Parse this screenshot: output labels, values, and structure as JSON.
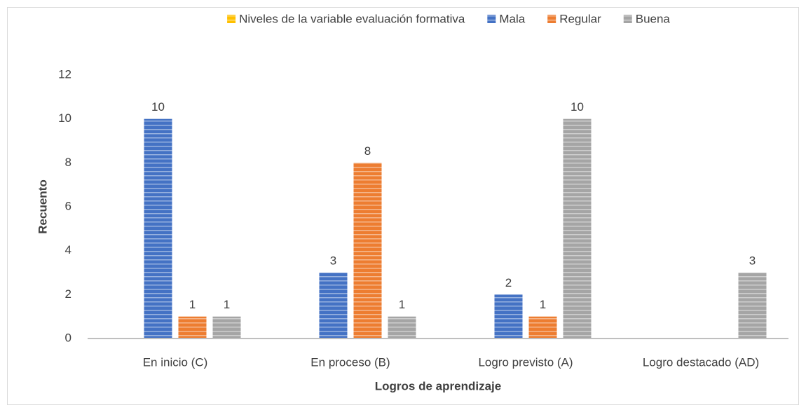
{
  "chart_data": {
    "type": "bar",
    "categories": [
      "En inicio (C)",
      "En proceso (B)",
      "Logro previsto (A)",
      "Logro destacado (AD)"
    ],
    "series": [
      {
        "name": "Niveles de la variable evaluación formativa",
        "color": "#ffc000",
        "values": [
          null,
          null,
          null,
          null
        ]
      },
      {
        "name": "Mala",
        "color": "#4472c4",
        "values": [
          10,
          3,
          2,
          null
        ]
      },
      {
        "name": "Regular",
        "color": "#ed7d31",
        "values": [
          1,
          8,
          1,
          null
        ]
      },
      {
        "name": "Buena",
        "color": "#a5a5a5",
        "values": [
          1,
          1,
          10,
          3
        ]
      }
    ],
    "xlabel": "Logros de aprendizaje",
    "ylabel": "Recuento",
    "ylim": [
      0,
      12
    ],
    "yticks": [
      0,
      2,
      4,
      6,
      8,
      10,
      12
    ],
    "grid": false,
    "legend": "top"
  }
}
